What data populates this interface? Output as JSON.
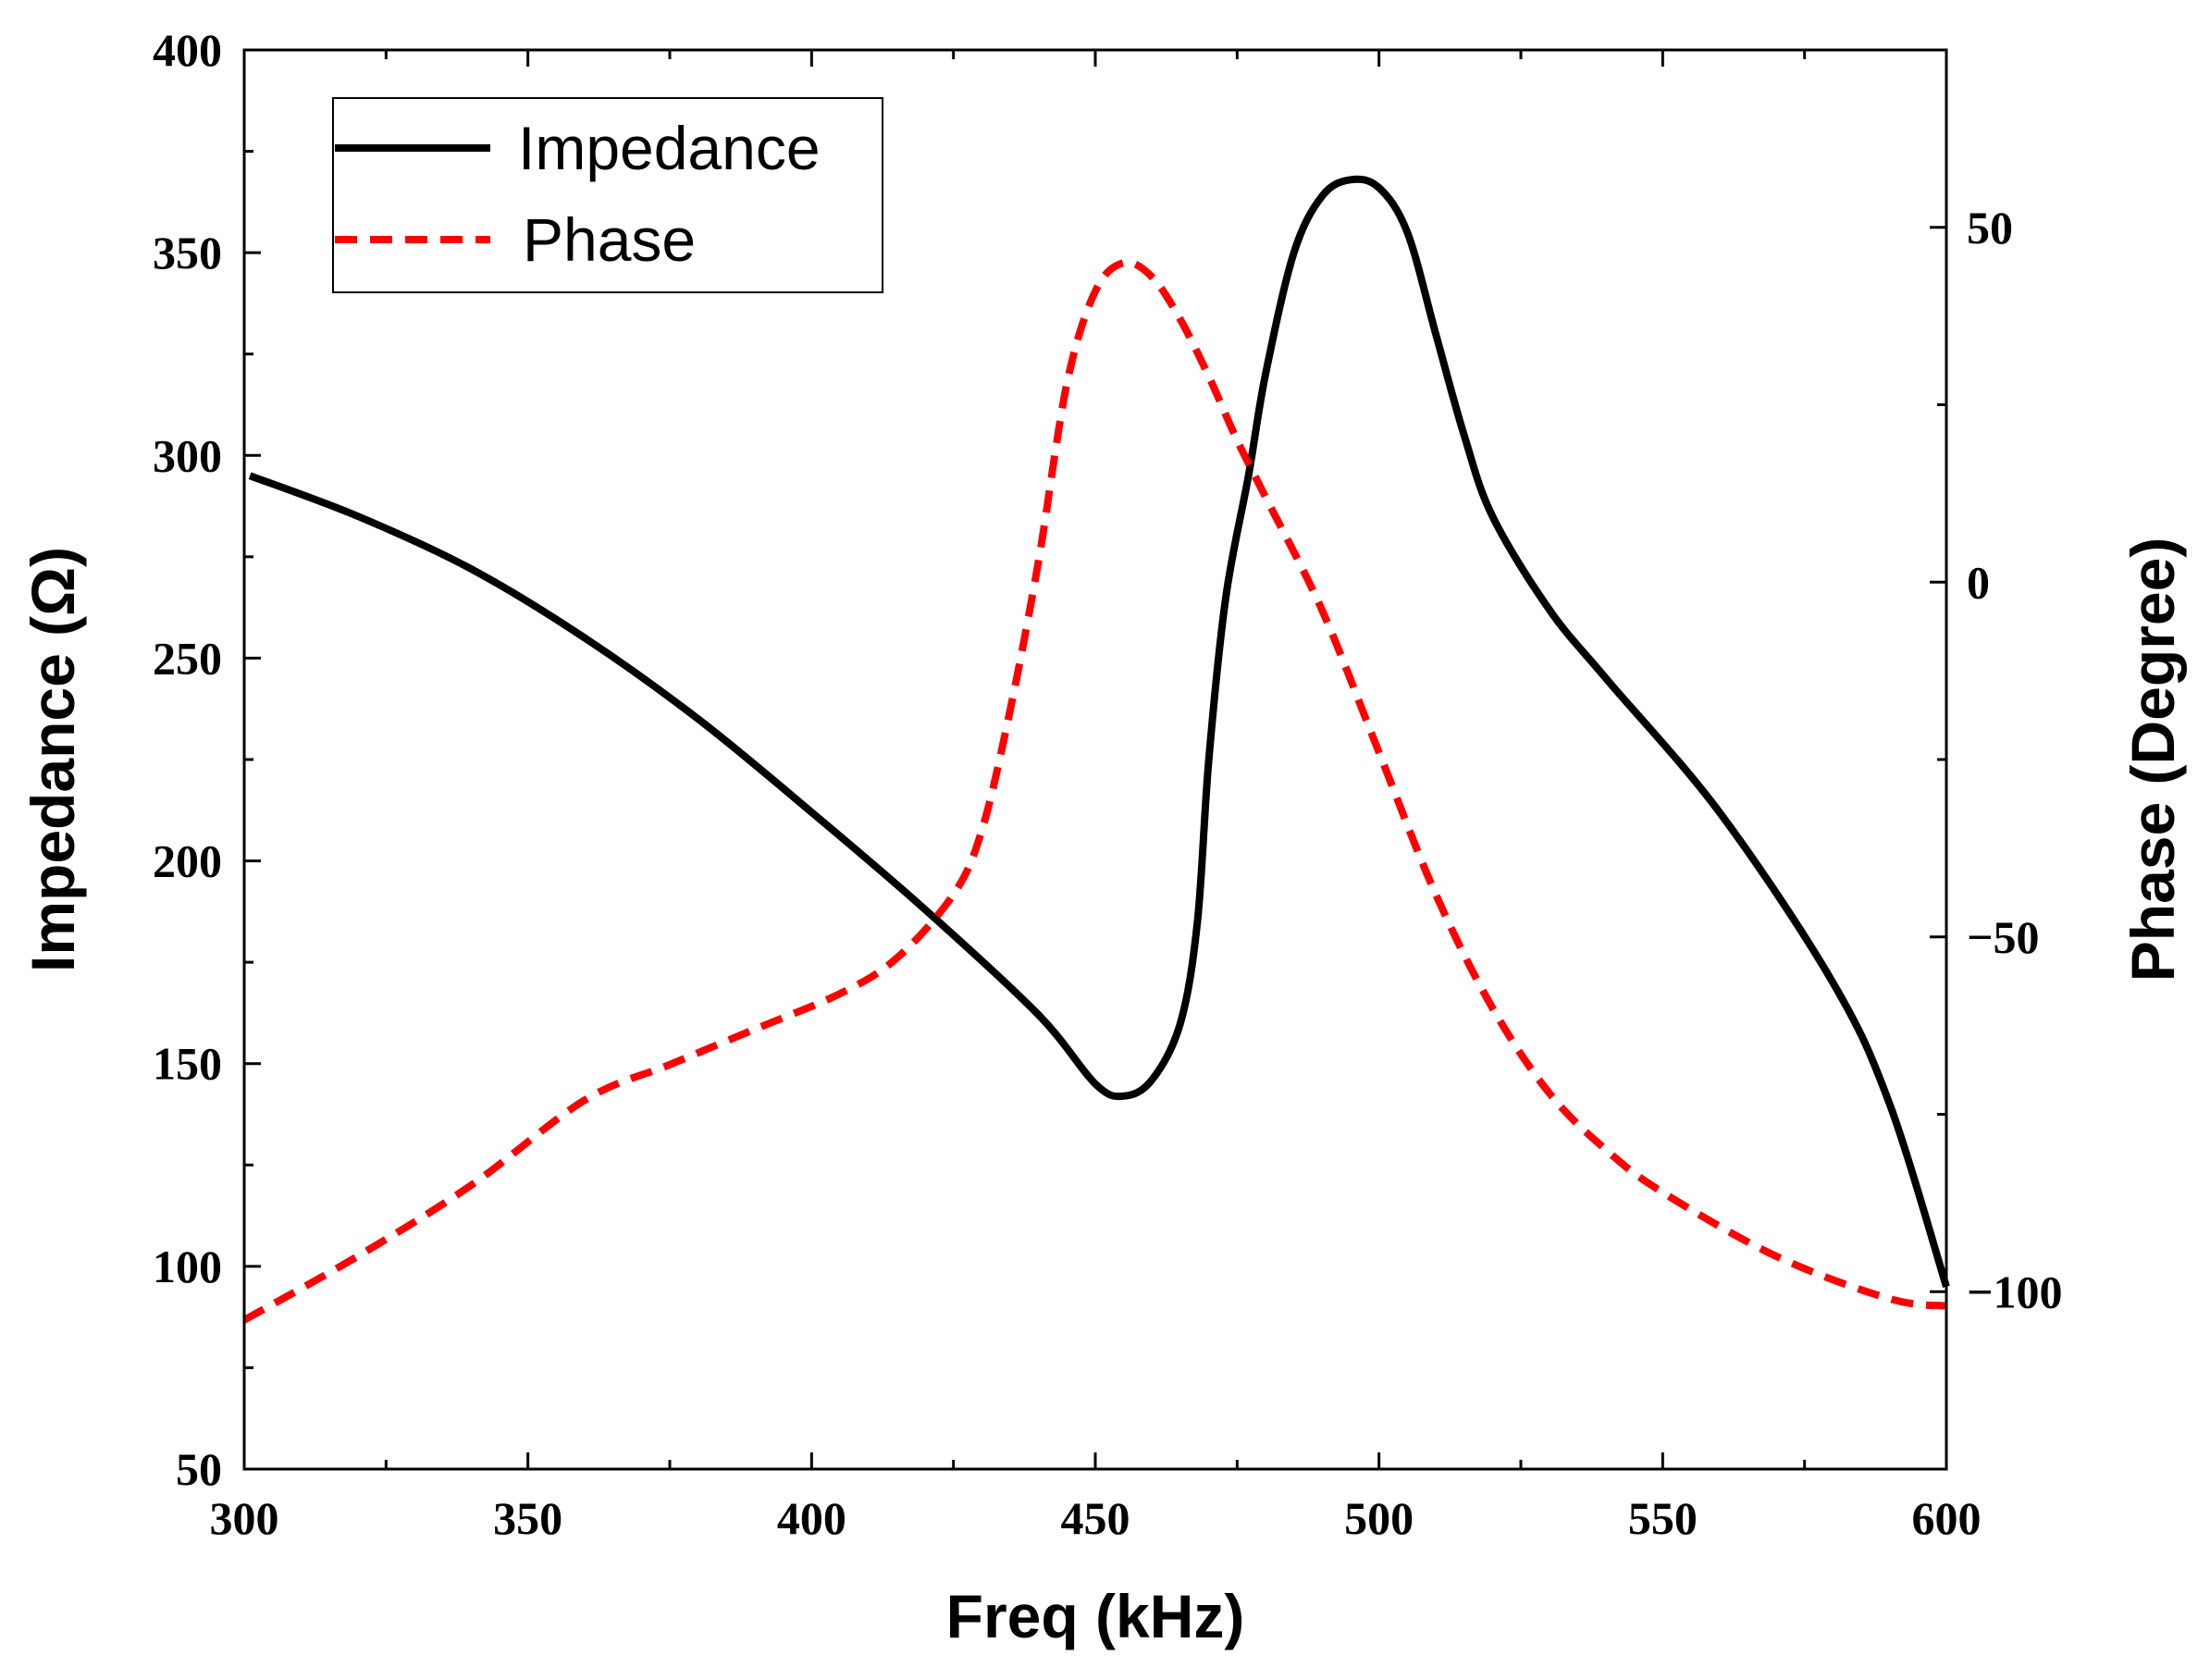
{
  "chart_data": {
    "type": "line",
    "title": "",
    "xlabel": "Freq (kHz)",
    "ylabel_left": "Impedance (Ω)",
    "ylabel_right": "Phase (Degree)",
    "xlim": [
      300,
      600
    ],
    "ylim_left": [
      50,
      400
    ],
    "ylim_right": [
      -125,
      75
    ],
    "x_ticks": [
      "300",
      "350",
      "400",
      "450",
      "500",
      "550",
      "600"
    ],
    "y_left_ticks": [
      "50",
      "100",
      "150",
      "200",
      "250",
      "300",
      "350",
      "400"
    ],
    "y_right_ticks": [
      "−100",
      "−50",
      "0",
      "50"
    ],
    "grid": false,
    "legend_position": "top-left",
    "series": [
      {
        "name": "Impedance",
        "axis": "left",
        "color": "#000000",
        "style": "solid",
        "x": [
          301,
          320,
          340,
          360,
          380,
          400,
          420,
          440,
          450,
          455,
          460,
          465,
          468,
          470,
          473,
          477,
          480,
          485,
          490,
          495,
          500,
          505,
          510,
          515,
          520,
          530,
          540,
          560,
          580,
          590,
          600
        ],
        "y": [
          295,
          285,
          272,
          255,
          235,
          212,
          188,
          162,
          145,
          142,
          146,
          160,
          185,
          225,
          265,
          295,
          320,
          350,
          364,
          368,
          366,
          355,
          330,
          305,
          285,
          262,
          245,
          212,
          170,
          140,
          95
        ]
      },
      {
        "name": "Phase",
        "axis": "right",
        "color": "#ff0000",
        "style": "dashed",
        "x": [
          300,
          320,
          340,
          360,
          375,
          390,
          405,
          415,
          425,
          430,
          435,
          440,
          445,
          450,
          455,
          460,
          465,
          470,
          475,
          480,
          490,
          500,
          510,
          520,
          530,
          540,
          550,
          570,
          590,
          600
        ],
        "y": [
          -104,
          -95,
          -85,
          -73,
          -68,
          -63,
          -58,
          -53,
          -44,
          -35,
          -18,
          3,
          28,
          41,
          45,
          43,
          37,
          29,
          20,
          12,
          -4,
          -24,
          -44,
          -60,
          -72,
          -80,
          -86,
          -95,
          -101,
          -102
        ]
      }
    ]
  }
}
